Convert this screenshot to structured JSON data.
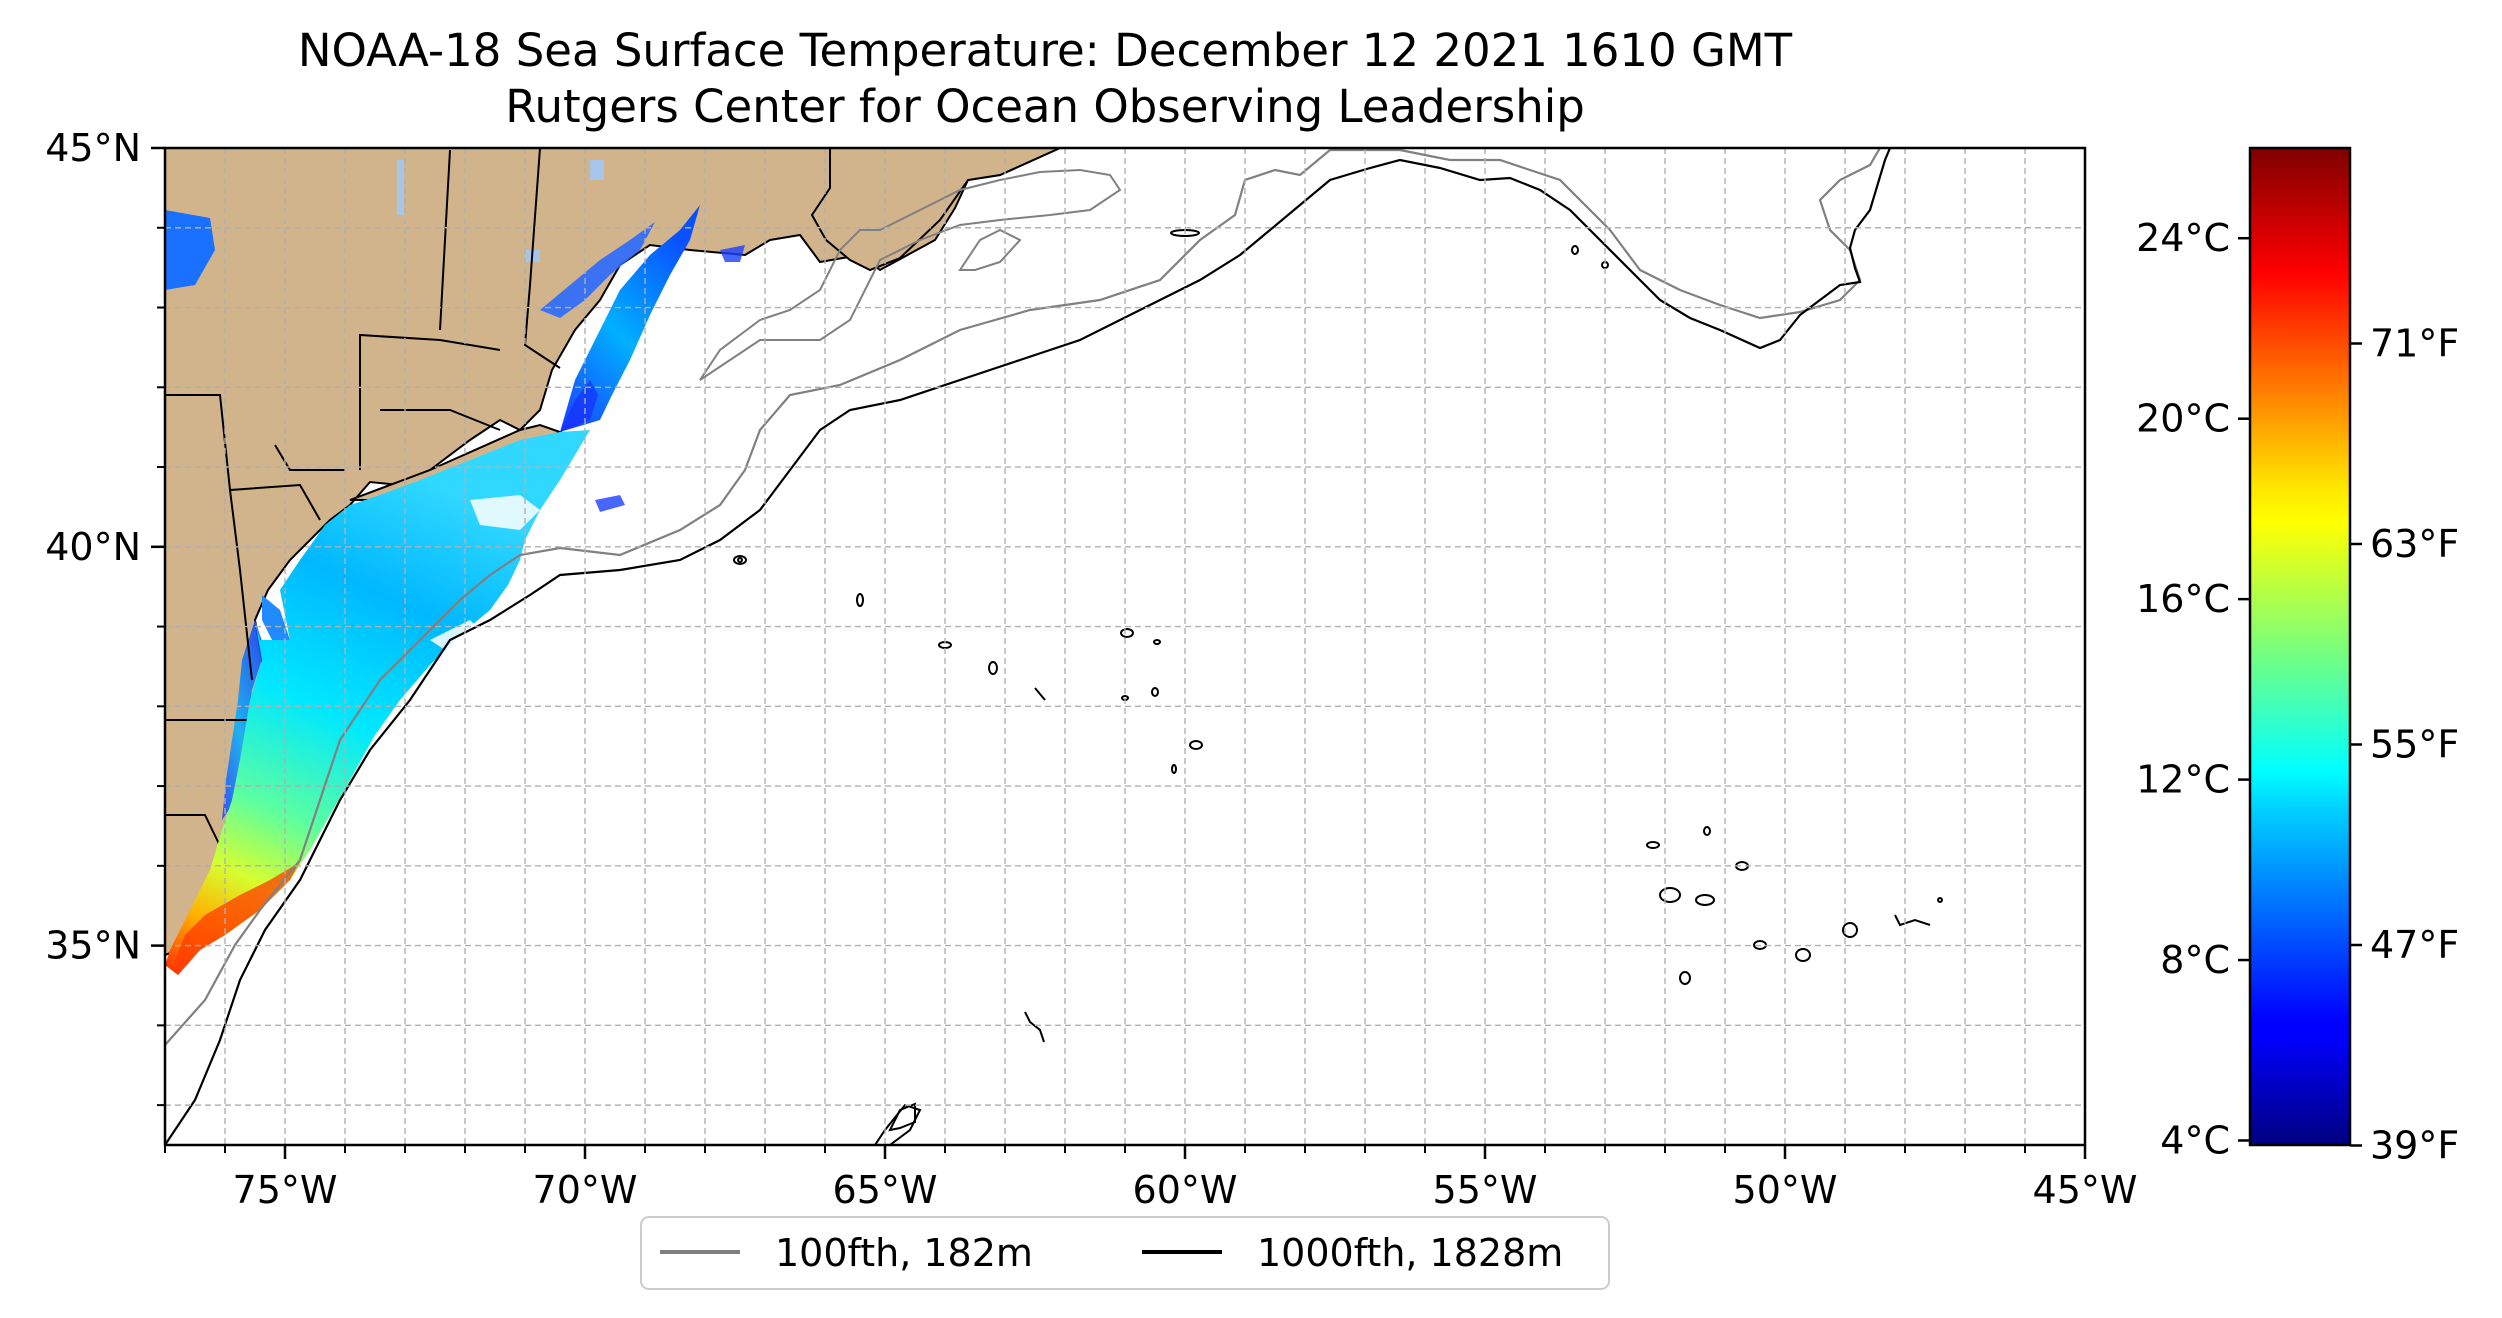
{
  "title": "NOAA-18 Sea Surface Temperature: December 12 2021 1610 GMT",
  "subtitle": "Rutgers Center for Ocean Observing Leadership",
  "map": {
    "lon_range": [
      -77,
      -45
    ],
    "lat_range": [
      32.5,
      45
    ],
    "lat_labels": [
      "45°N",
      "40°N",
      "35°N"
    ],
    "lat_values": [
      45,
      40,
      35
    ],
    "lon_labels": [
      "75°W",
      "70°W",
      "65°W",
      "60°W",
      "55°W",
      "50°W",
      "45°W"
    ],
    "lon_values": [
      -75,
      -70,
      -65,
      -60,
      -55,
      -50,
      -45
    ],
    "gridlines": true,
    "land_color": "#d2b48c",
    "lake_color": "#a6c5e8"
  },
  "legend": {
    "placement": "bottom-center",
    "entries": [
      {
        "label": "100fth, 182m",
        "color": "#808080"
      },
      {
        "label": "1000fth, 1828m",
        "color": "#000000"
      }
    ]
  },
  "colorbar": {
    "colormap": "jet",
    "celsius_labels": [
      "24°C",
      "20°C",
      "16°C",
      "12°C",
      "8°C",
      "4°C"
    ],
    "celsius_values": [
      24,
      20,
      16,
      12,
      8,
      4
    ],
    "fahrenheit_labels": [
      "71°F",
      "63°F",
      "55°F",
      "47°F",
      "39°F"
    ],
    "fahrenheit_values": [
      71,
      63,
      55,
      47,
      39
    ],
    "range_c": [
      3.9,
      26.0
    ]
  }
}
